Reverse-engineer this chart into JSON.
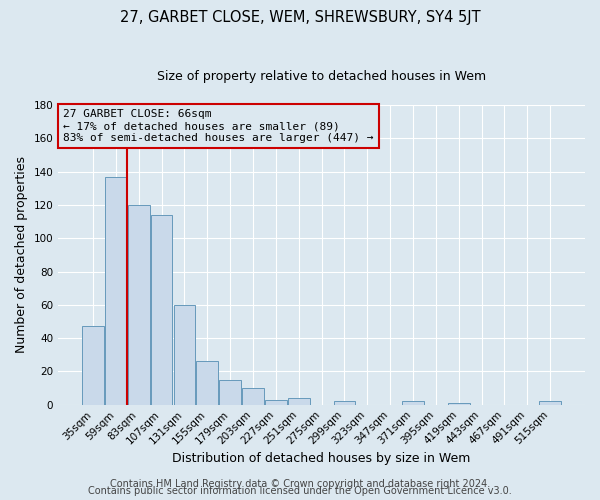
{
  "title": "27, GARBET CLOSE, WEM, SHREWSBURY, SY4 5JT",
  "subtitle": "Size of property relative to detached houses in Wem",
  "xlabel": "Distribution of detached houses by size in Wem",
  "ylabel": "Number of detached properties",
  "bar_labels": [
    "35sqm",
    "59sqm",
    "83sqm",
    "107sqm",
    "131sqm",
    "155sqm",
    "179sqm",
    "203sqm",
    "227sqm",
    "251sqm",
    "275sqm",
    "299sqm",
    "323sqm",
    "347sqm",
    "371sqm",
    "395sqm",
    "419sqm",
    "443sqm",
    "467sqm",
    "491sqm",
    "515sqm"
  ],
  "bar_values": [
    47,
    137,
    120,
    114,
    60,
    26,
    15,
    10,
    3,
    4,
    0,
    2,
    0,
    0,
    2,
    0,
    1,
    0,
    0,
    0,
    2
  ],
  "ylim": [
    0,
    180
  ],
  "yticks": [
    0,
    20,
    40,
    60,
    80,
    100,
    120,
    140,
    160,
    180
  ],
  "bar_color": "#c9d9ea",
  "bar_edgecolor": "#6699bb",
  "vline_color": "#cc0000",
  "vline_x_index": 1,
  "annotation_title": "27 GARBET CLOSE: 66sqm",
  "annotation_line1": "← 17% of detached houses are smaller (89)",
  "annotation_line2": "83% of semi-detached houses are larger (447) →",
  "annotation_box_edgecolor": "#cc0000",
  "footer_line1": "Contains HM Land Registry data © Crown copyright and database right 2024.",
  "footer_line2": "Contains public sector information licensed under the Open Government Licence v3.0.",
  "background_color": "#dce8f0",
  "grid_color": "#ffffff",
  "title_fontsize": 10.5,
  "subtitle_fontsize": 9,
  "axis_label_fontsize": 9,
  "tick_fontsize": 7.5,
  "footer_fontsize": 7
}
